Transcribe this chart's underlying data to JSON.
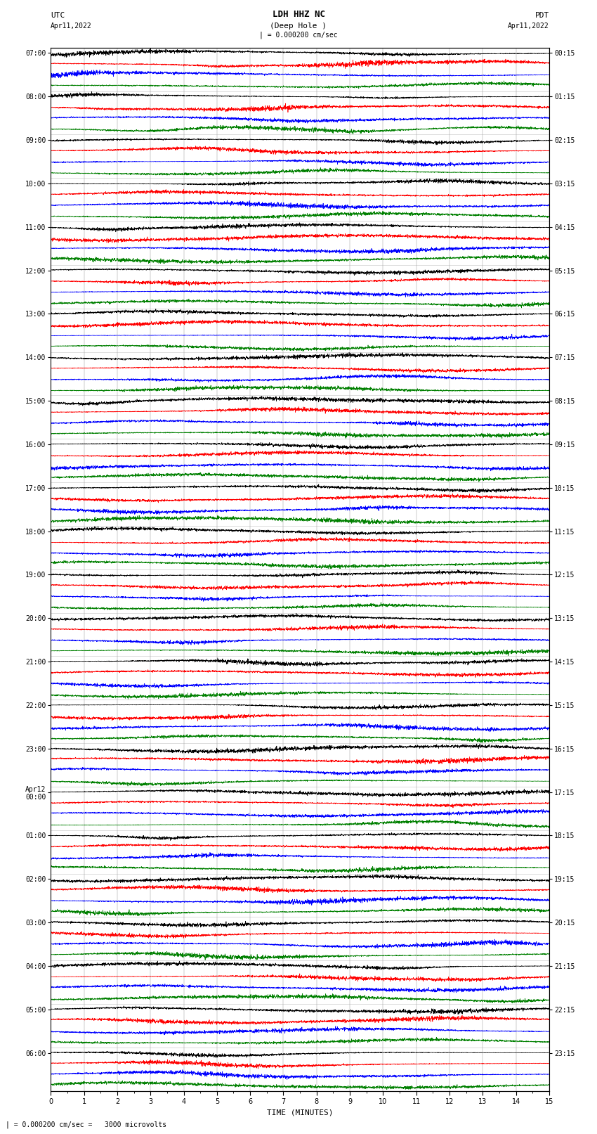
{
  "title_line1": "LDH HHZ NC",
  "title_line2": "(Deep Hole )",
  "title_line3": "| = 0.000200 cm/sec",
  "label_utc": "UTC",
  "label_pdt": "PDT",
  "label_date": "Apr11,2022",
  "xlabel": "TIME (MINUTES)",
  "footnote": "| = 0.000200 cm/sec =   3000 microvolts",
  "bg_color": "#ffffff",
  "trace_colors": [
    "black",
    "red",
    "blue",
    "green"
  ],
  "utc_labels": [
    "07:00",
    "08:00",
    "09:00",
    "10:00",
    "11:00",
    "12:00",
    "13:00",
    "14:00",
    "15:00",
    "16:00",
    "17:00",
    "18:00",
    "19:00",
    "20:00",
    "21:00",
    "22:00",
    "23:00",
    "Apr12\n00:00",
    "01:00",
    "02:00",
    "03:00",
    "04:00",
    "05:00",
    "06:00"
  ],
  "pdt_labels": [
    "00:15",
    "01:15",
    "02:15",
    "03:15",
    "04:15",
    "05:15",
    "06:15",
    "07:15",
    "08:15",
    "09:15",
    "10:15",
    "11:15",
    "12:15",
    "13:15",
    "14:15",
    "15:15",
    "16:15",
    "17:15",
    "18:15",
    "19:15",
    "20:15",
    "21:15",
    "22:15",
    "23:15"
  ],
  "num_rows": 24,
  "traces_per_row": 4,
  "time_minutes": 15,
  "noise_seed": 42
}
